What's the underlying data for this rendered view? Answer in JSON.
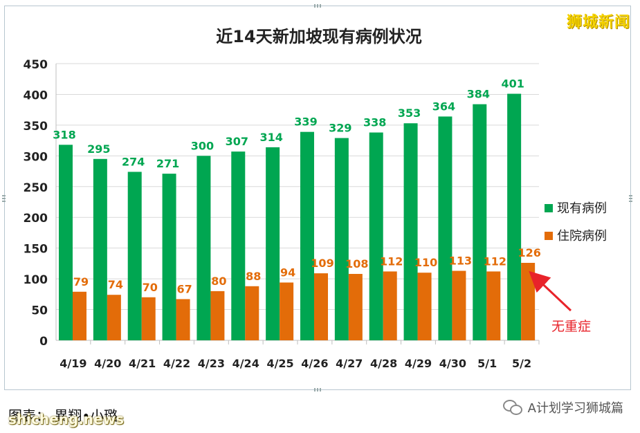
{
  "brand": "狮城新闻",
  "caption": "图表： 異翔•小璐",
  "watermark_left": "shicheng.news",
  "wechat_label": "A计划学习狮城篇",
  "chart_data": {
    "type": "bar",
    "title": "近14天新加坡现有病例状况",
    "xlabel": "",
    "ylabel": "",
    "ylim": [
      0,
      450
    ],
    "yticks": [
      0,
      50,
      100,
      150,
      200,
      250,
      300,
      350,
      400,
      450
    ],
    "grid": true,
    "legend_position": "right",
    "categories": [
      "4/19",
      "4/20",
      "4/21",
      "4/22",
      "4/23",
      "4/24",
      "4/25",
      "4/26",
      "4/27",
      "4/28",
      "4/29",
      "4/30",
      "5/1",
      "5/2"
    ],
    "series": [
      {
        "name": "现有病例",
        "color": "#00a651",
        "label_color": "#00a651",
        "values": [
          318,
          295,
          274,
          271,
          300,
          307,
          314,
          339,
          329,
          338,
          353,
          364,
          384,
          401
        ]
      },
      {
        "name": "住院病例",
        "color": "#e36c09",
        "label_color": "#e36c09",
        "values": [
          79,
          74,
          70,
          67,
          80,
          88,
          94,
          109,
          108,
          112,
          110,
          113,
          112,
          126
        ]
      }
    ],
    "annotation": {
      "text": "无重症",
      "color": "#e8232a",
      "target_category": "5/2"
    }
  }
}
